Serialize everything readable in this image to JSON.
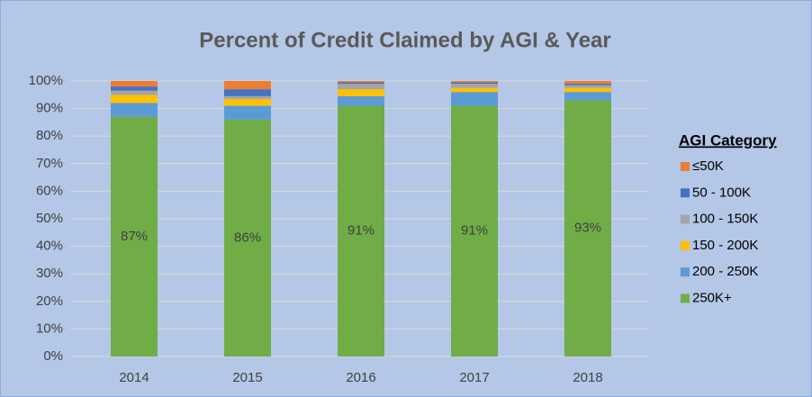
{
  "chart_data": {
    "type": "stacked_bar",
    "title": "Percent of Credit Claimed by AGI & Year",
    "categories": [
      "2014",
      "2015",
      "2016",
      "2017",
      "2018"
    ],
    "series": [
      {
        "name": "250K+",
        "color": "#70ad47",
        "values": [
          87,
          86,
          91,
          91,
          93
        ],
        "value_labels": [
          "87%",
          "86%",
          "91%",
          "91%",
          "93%"
        ]
      },
      {
        "name": "200 - 250K",
        "color": "#5b9bd5",
        "values": [
          5,
          5,
          3.5,
          5,
          3
        ]
      },
      {
        "name": "150 - 200K",
        "color": "#ffc000",
        "values": [
          3,
          2.5,
          2.5,
          1.5,
          1.5
        ]
      },
      {
        "name": "100 - 150K",
        "color": "#a5a5a5",
        "values": [
          1.5,
          1,
          2,
          1.5,
          1
        ]
      },
      {
        "name": "50 - 100K",
        "color": "#4472c4",
        "values": [
          1.5,
          2.5,
          0.5,
          0.5,
          0.5
        ]
      },
      {
        "name": "≤50K",
        "color": "#ed7d31",
        "values": [
          2,
          3,
          0.5,
          0.5,
          1
        ]
      }
    ],
    "ylim": [
      0,
      100
    ],
    "yticks": [
      {
        "value": 0,
        "label": "0%"
      },
      {
        "value": 10,
        "label": "10%"
      },
      {
        "value": 20,
        "label": "20%"
      },
      {
        "value": 30,
        "label": "30%"
      },
      {
        "value": 40,
        "label": "40%"
      },
      {
        "value": 50,
        "label": "50%"
      },
      {
        "value": 60,
        "label": "60%"
      },
      {
        "value": 70,
        "label": "70%"
      },
      {
        "value": 80,
        "label": "80%"
      },
      {
        "value": 90,
        "label": "90%"
      },
      {
        "value": 100,
        "label": "100%"
      }
    ],
    "grid": true,
    "legend": "right",
    "legend_title": "AGI Category"
  }
}
